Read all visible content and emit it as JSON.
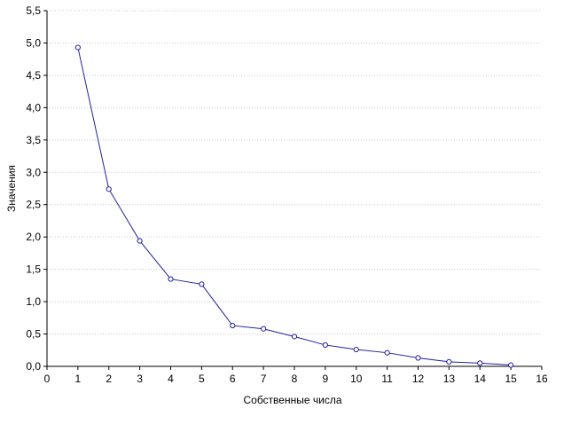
{
  "chart_data": {
    "type": "line",
    "title": "",
    "xlabel": "Собственные числа",
    "ylabel": "Значения",
    "xlim": [
      0,
      16
    ],
    "ylim": [
      0,
      5.5
    ],
    "x_ticks": [
      0,
      1,
      2,
      3,
      4,
      5,
      6,
      7,
      8,
      9,
      10,
      11,
      12,
      13,
      14,
      15,
      16
    ],
    "x_tick_labels": [
      "0",
      "1",
      "2",
      "3",
      "4",
      "5",
      "6",
      "7",
      "8",
      "9",
      "10",
      "11",
      "12",
      "13",
      "14",
      "15",
      "16"
    ],
    "y_ticks": [
      0,
      0.5,
      1,
      1.5,
      2,
      2.5,
      3,
      3.5,
      4,
      4.5,
      5,
      5.5
    ],
    "y_tick_labels": [
      "0,0",
      "0,5",
      "1,0",
      "1,5",
      "2,0",
      "2,5",
      "3,0",
      "3,5",
      "4,0",
      "4,5",
      "5,0",
      "5,5"
    ],
    "grid": true,
    "line_color": "#1f1fa0",
    "marker": "circle",
    "series": [
      {
        "x": [
          1,
          2,
          3,
          4,
          5,
          6,
          7,
          8,
          9,
          10,
          11,
          12,
          13,
          14,
          15
        ],
        "values": [
          4.93,
          2.74,
          1.94,
          1.35,
          1.27,
          0.63,
          0.58,
          0.46,
          0.33,
          0.26,
          0.21,
          0.13,
          0.07,
          0.05,
          0.02
        ]
      }
    ]
  }
}
